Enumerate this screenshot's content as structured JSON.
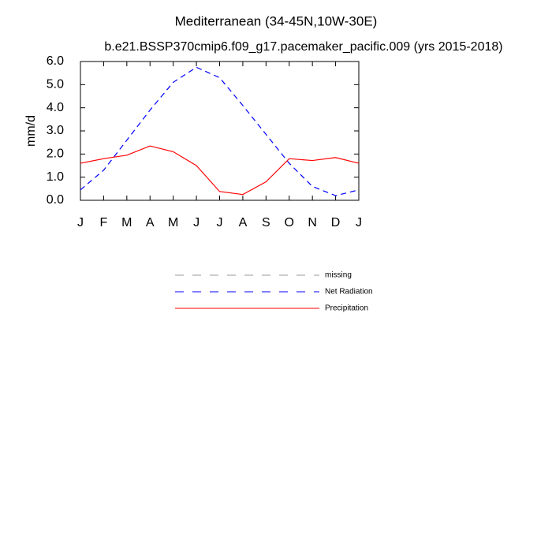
{
  "chart_data": {
    "type": "line",
    "title": "Mediterranean (34-45N,10W-30E)",
    "subtitle": "b.e21.BSSP370cmip6.f09_g17.pacemaker_pacific.009 (yrs 2015-2018)",
    "y_label": "mm/d",
    "categories": [
      "J",
      "F",
      "M",
      "A",
      "M",
      "J",
      "J",
      "A",
      "S",
      "O",
      "N",
      "D",
      "J"
    ],
    "series": [
      {
        "name": "missing",
        "color": "#999999",
        "dashed": true,
        "values": [
          null,
          null,
          null,
          null,
          null,
          null,
          null,
          null,
          null,
          null,
          null,
          null,
          null
        ]
      },
      {
        "name": "Net Radiation",
        "color": "#0000ff",
        "dashed": true,
        "values": [
          0.45,
          1.3,
          2.6,
          3.9,
          5.1,
          5.75,
          5.3,
          4.1,
          2.85,
          1.6,
          0.6,
          0.2,
          0.45
        ]
      },
      {
        "name": "Precipitation",
        "color": "#ff0000",
        "dashed": false,
        "values": [
          1.6,
          1.8,
          1.95,
          2.35,
          2.1,
          1.5,
          0.38,
          0.25,
          0.8,
          1.8,
          1.72,
          1.85,
          1.6
        ]
      }
    ],
    "ylim": [
      0,
      6
    ],
    "yticks": [
      {
        "value": 0,
        "label": "0.0"
      },
      {
        "value": 1,
        "label": "1.0"
      },
      {
        "value": 2,
        "label": "2.0"
      },
      {
        "value": 3,
        "label": "3.0"
      },
      {
        "value": 4,
        "label": "4.0"
      },
      {
        "value": 5,
        "label": "5.0"
      },
      {
        "value": 6,
        "label": "6.0"
      }
    ],
    "grid": false
  }
}
